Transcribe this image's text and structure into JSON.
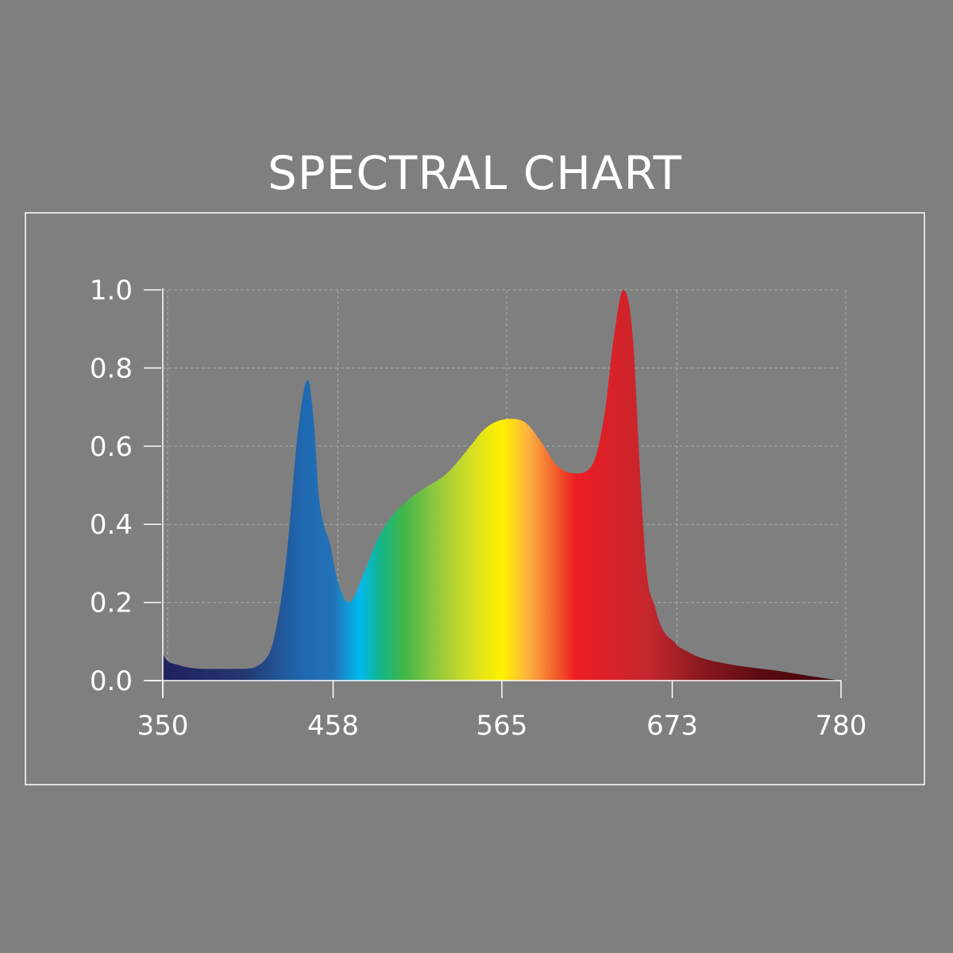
{
  "chart_data": {
    "type": "area",
    "title": "SPECTRAL CHART",
    "xlabel": "",
    "ylabel": "",
    "xlim": [
      350,
      780
    ],
    "ylim": [
      0,
      1.0
    ],
    "x_ticks": [
      350,
      458,
      565,
      673,
      780
    ],
    "x_tick_labels": [
      "350",
      "458",
      "565",
      "673",
      "780"
    ],
    "y_ticks": [
      0,
      0.2,
      0.4,
      0.6,
      0.8,
      1.0
    ],
    "y_tick_labels": [
      "0.0",
      "0.2",
      "0.4",
      "0.6",
      "0.8",
      "1.0"
    ],
    "grid": true,
    "series": [
      {
        "x": [
          350,
          351,
          360,
          380,
          400,
          414,
          420,
          428,
          436,
          442,
          446,
          449,
          452,
          456,
          460,
          465,
          468,
          472,
          476,
          480,
          486,
          495,
          505,
          515,
          530,
          545,
          553,
          560,
          570,
          580,
          590,
          600,
          612,
          622,
          630,
          636,
          642,
          648,
          653,
          657,
          662,
          664,
          667,
          671,
          674,
          676,
          680,
          690,
          705,
          720,
          740,
          760,
          780
        ],
        "y": [
          0.07,
          0.06,
          0.04,
          0.03,
          0.03,
          0.05,
          0.1,
          0.3,
          0.65,
          0.77,
          0.65,
          0.47,
          0.4,
          0.35,
          0.27,
          0.21,
          0.2,
          0.22,
          0.26,
          0.3,
          0.36,
          0.42,
          0.46,
          0.49,
          0.53,
          0.6,
          0.64,
          0.66,
          0.67,
          0.66,
          0.61,
          0.55,
          0.53,
          0.55,
          0.68,
          0.88,
          1.0,
          0.88,
          0.5,
          0.27,
          0.19,
          0.16,
          0.13,
          0.11,
          0.1,
          0.09,
          0.08,
          0.06,
          0.045,
          0.035,
          0.025,
          0.012,
          0.0
        ]
      }
    ],
    "gradient_stops": [
      {
        "x": 350,
        "color": "#20215e"
      },
      {
        "x": 400,
        "color": "#253670"
      },
      {
        "x": 440,
        "color": "#1f6ab2"
      },
      {
        "x": 458,
        "color": "#2272b8"
      },
      {
        "x": 475,
        "color": "#00b9ef"
      },
      {
        "x": 488,
        "color": "#14b68a"
      },
      {
        "x": 502,
        "color": "#3eb54a"
      },
      {
        "x": 522,
        "color": "#8dc63f"
      },
      {
        "x": 546,
        "color": "#d7df23"
      },
      {
        "x": 565,
        "color": "#fff200"
      },
      {
        "x": 582,
        "color": "#fbb040"
      },
      {
        "x": 600,
        "color": "#f15a29"
      },
      {
        "x": 612,
        "color": "#ed1c24"
      },
      {
        "x": 660,
        "color": "#c1272d"
      },
      {
        "x": 690,
        "color": "#8b1a1f"
      },
      {
        "x": 730,
        "color": "#5a0b10"
      },
      {
        "x": 780,
        "color": "#3c0508"
      }
    ],
    "colors": {
      "background": "#807f80",
      "text": "#ffffff",
      "grid": "#a8a8a8"
    }
  }
}
